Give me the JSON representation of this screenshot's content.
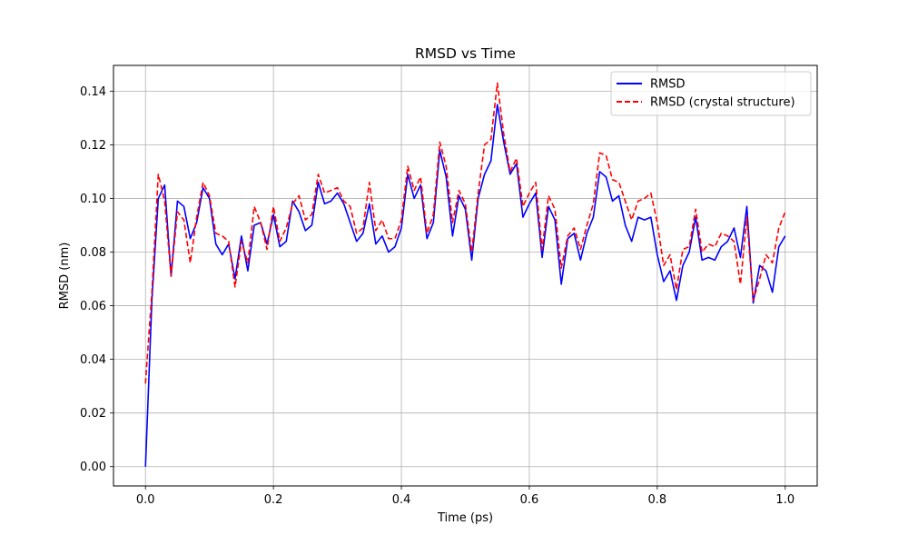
{
  "chart_data": {
    "type": "line",
    "title": "RMSD vs Time",
    "xlabel": "Time (ps)",
    "ylabel": "RMSD (nm)",
    "xlim": [
      -0.05,
      1.05
    ],
    "ylim": [
      -0.0072,
      0.1496
    ],
    "xticks": [
      0.0,
      0.2,
      0.4,
      0.6,
      0.8,
      1.0
    ],
    "xtick_labels": [
      "0.0",
      "0.2",
      "0.4",
      "0.6",
      "0.8",
      "1.0"
    ],
    "yticks": [
      0.0,
      0.02,
      0.04,
      0.06,
      0.08,
      0.1,
      0.12,
      0.14
    ],
    "ytick_labels": [
      "0.00",
      "0.02",
      "0.04",
      "0.06",
      "0.08",
      "0.10",
      "0.12",
      "0.14"
    ],
    "grid": true,
    "legend_position": "top-right",
    "x": [
      0.0,
      0.01,
      0.02,
      0.03,
      0.04,
      0.05,
      0.06,
      0.07,
      0.08,
      0.09,
      0.1,
      0.11,
      0.12,
      0.13,
      0.14,
      0.15,
      0.16,
      0.17,
      0.18,
      0.19,
      0.2,
      0.21,
      0.22,
      0.23,
      0.24,
      0.25,
      0.26,
      0.27,
      0.28,
      0.29,
      0.3,
      0.31,
      0.32,
      0.33,
      0.34,
      0.35,
      0.36,
      0.37,
      0.38,
      0.39,
      0.4,
      0.41,
      0.42,
      0.43,
      0.44,
      0.45,
      0.46,
      0.47,
      0.48,
      0.49,
      0.5,
      0.51,
      0.52,
      0.53,
      0.54,
      0.55,
      0.56,
      0.57,
      0.58,
      0.59,
      0.6,
      0.61,
      0.62,
      0.63,
      0.64,
      0.65,
      0.66,
      0.67,
      0.68,
      0.69,
      0.7,
      0.71,
      0.72,
      0.73,
      0.74,
      0.75,
      0.76,
      0.77,
      0.78,
      0.79,
      0.8,
      0.81,
      0.82,
      0.83,
      0.84,
      0.85,
      0.86,
      0.87,
      0.88,
      0.89,
      0.9,
      0.91,
      0.92,
      0.93,
      0.94,
      0.95,
      0.96,
      0.97,
      0.98,
      0.99,
      1.0
    ],
    "series": [
      {
        "name": "RMSD",
        "color": "#0000ff",
        "style": "solid",
        "values": [
          0.0,
          0.062,
          0.1,
          0.105,
          0.071,
          0.099,
          0.097,
          0.085,
          0.091,
          0.104,
          0.1,
          0.083,
          0.079,
          0.083,
          0.07,
          0.086,
          0.073,
          0.09,
          0.091,
          0.083,
          0.094,
          0.082,
          0.084,
          0.099,
          0.095,
          0.088,
          0.09,
          0.106,
          0.098,
          0.099,
          0.102,
          0.098,
          0.091,
          0.084,
          0.087,
          0.098,
          0.083,
          0.086,
          0.08,
          0.082,
          0.089,
          0.109,
          0.1,
          0.105,
          0.085,
          0.091,
          0.118,
          0.108,
          0.086,
          0.101,
          0.096,
          0.077,
          0.1,
          0.109,
          0.114,
          0.135,
          0.121,
          0.109,
          0.113,
          0.093,
          0.098,
          0.102,
          0.078,
          0.097,
          0.092,
          0.068,
          0.085,
          0.087,
          0.077,
          0.087,
          0.093,
          0.11,
          0.108,
          0.099,
          0.101,
          0.09,
          0.084,
          0.093,
          0.092,
          0.093,
          0.079,
          0.069,
          0.073,
          0.062,
          0.075,
          0.08,
          0.093,
          0.077,
          0.078,
          0.077,
          0.082,
          0.084,
          0.089,
          0.078,
          0.097,
          0.061,
          0.075,
          0.073,
          0.065,
          0.082,
          0.086
        ]
      },
      {
        "name": "RMSD (crystal structure)",
        "color": "#ff0000",
        "style": "dashed",
        "values": [
          0.031,
          0.065,
          0.109,
          0.099,
          0.071,
          0.095,
          0.092,
          0.076,
          0.093,
          0.106,
          0.101,
          0.087,
          0.086,
          0.084,
          0.067,
          0.084,
          0.076,
          0.097,
          0.091,
          0.081,
          0.097,
          0.084,
          0.089,
          0.098,
          0.101,
          0.092,
          0.094,
          0.109,
          0.102,
          0.103,
          0.104,
          0.099,
          0.097,
          0.087,
          0.089,
          0.106,
          0.088,
          0.092,
          0.085,
          0.085,
          0.092,
          0.112,
          0.103,
          0.108,
          0.087,
          0.094,
          0.121,
          0.112,
          0.091,
          0.103,
          0.098,
          0.08,
          0.102,
          0.12,
          0.122,
          0.143,
          0.124,
          0.11,
          0.115,
          0.097,
          0.102,
          0.106,
          0.081,
          0.101,
          0.096,
          0.074,
          0.086,
          0.089,
          0.081,
          0.09,
          0.098,
          0.117,
          0.116,
          0.107,
          0.106,
          0.099,
          0.092,
          0.099,
          0.1,
          0.102,
          0.091,
          0.075,
          0.079,
          0.066,
          0.081,
          0.082,
          0.096,
          0.08,
          0.083,
          0.082,
          0.087,
          0.086,
          0.084,
          0.068,
          0.093,
          0.062,
          0.07,
          0.079,
          0.076,
          0.089,
          0.095
        ]
      }
    ]
  }
}
